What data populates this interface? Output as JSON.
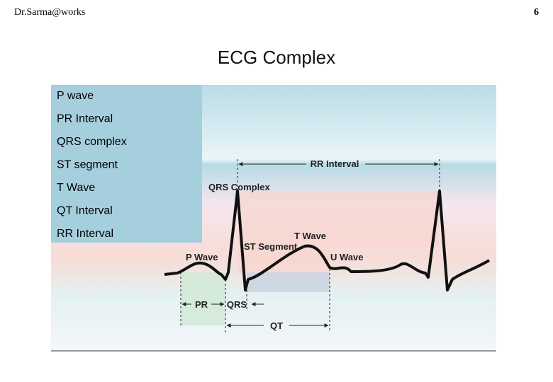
{
  "header": {
    "author": "Dr.Sarma@works",
    "page": 6
  },
  "title": "ECG Complex",
  "list": [
    "P wave",
    "PR Interval",
    "QRS complex",
    "ST segment",
    "T Wave",
    "QT Interval",
    "RR Interval"
  ],
  "diagram": {
    "labels": {
      "rr": "RR Interval",
      "qrs_complex": "QRS Complex",
      "t_wave": "T Wave",
      "st_segment": "ST Segment",
      "p_wave": "P Wave",
      "u_wave": "U Wave",
      "pr": "PR",
      "qrs": "QRS",
      "qt": "QT"
    }
  }
}
